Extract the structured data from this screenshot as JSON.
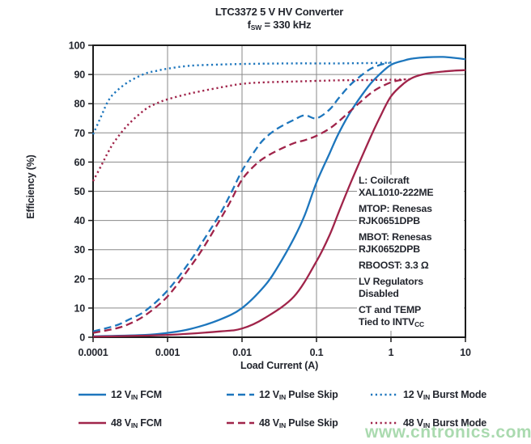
{
  "title": {
    "line1": "LTC3372 5 V HV Converter",
    "line2": {
      "pre": "f",
      "sub": "SW",
      "post": " = 330 kHz"
    }
  },
  "axes": {
    "x_label": "Load Current (A)",
    "y_label": "Efficiency (%)",
    "x_ticks": [
      "0.0001",
      "0.001",
      "0.01",
      "0.1",
      "1",
      "10"
    ],
    "y_ticks": [
      "0",
      "10",
      "20",
      "30",
      "40",
      "50",
      "60",
      "70",
      "80",
      "90",
      "100"
    ]
  },
  "annotation": {
    "groups": [
      {
        "lines": [
          {
            "pre": "L: Coilcraft",
            "sub": ""
          },
          {
            "pre": "XAL1010-222ME",
            "sub": ""
          }
        ]
      },
      {
        "lines": [
          {
            "pre": "MTOP: Renesas",
            "sub": ""
          },
          {
            "pre": "RJK0651DPB",
            "sub": ""
          }
        ]
      },
      {
        "lines": [
          {
            "pre": "MBOT: Renesas",
            "sub": ""
          },
          {
            "pre": "RJK0652DPB",
            "sub": ""
          }
        ]
      },
      {
        "lines": [
          {
            "pre": "RBOOST: 3.3 Ω",
            "sub": ""
          }
        ]
      },
      {
        "lines": [
          {
            "pre": "LV Regulators",
            "sub": ""
          },
          {
            "pre": "Disabled",
            "sub": ""
          }
        ]
      },
      {
        "lines": [
          {
            "pre": "CT and TEMP",
            "sub": ""
          },
          {
            "pre": "Tied to INTV",
            "sub": "CC"
          }
        ]
      }
    ]
  },
  "legend": {
    "rows": [
      {
        "entries": [
          {
            "style": "solid",
            "color": "blue",
            "pre": "12 V",
            "sub": "IN",
            "post": " FCM"
          },
          {
            "style": "dashed",
            "color": "blue",
            "pre": "12 V",
            "sub": "IN",
            "post": " Pulse Skip"
          },
          {
            "style": "dotted",
            "color": "blue",
            "pre": "12 V",
            "sub": "IN",
            "post": " Burst Mode"
          }
        ]
      },
      {
        "entries": [
          {
            "style": "solid",
            "color": "crimson",
            "pre": "48 V",
            "sub": "IN",
            "post": " FCM"
          },
          {
            "style": "dashed",
            "color": "crimson",
            "pre": "48 V",
            "sub": "IN",
            "post": " Pulse Skip"
          },
          {
            "style": "dotted",
            "color": "crimson",
            "pre": "48 V",
            "sub": "IN",
            "post": " Burst Mode"
          }
        ]
      }
    ]
  },
  "watermark": "www.cntronics.com",
  "colors": {
    "blue": "#1d76bd",
    "crimson": "#a0244a",
    "text": "#23262e",
    "grid": "#8a8a8a",
    "axis": "#1c1c1c",
    "watermark": "#9cd4a2"
  },
  "chart_data": {
    "type": "line",
    "title": "LTC3372 5 V HV Converter, fSW = 330 kHz",
    "xlabel": "Load Current (A)",
    "ylabel": "Efficiency (%)",
    "x_scale": "log",
    "xlim": [
      0.0001,
      10
    ],
    "ylim": [
      0,
      100
    ],
    "grid": true,
    "legend_position": "bottom",
    "series": [
      {
        "name": "12 VIN FCM",
        "color": "blue",
        "style": "solid",
        "x": [
          0.0001,
          0.0005,
          0.001,
          0.002,
          0.005,
          0.01,
          0.02,
          0.03,
          0.05,
          0.07,
          0.1,
          0.15,
          0.2,
          0.3,
          0.5,
          0.7,
          1,
          1.5,
          2,
          3,
          5,
          7,
          10
        ],
        "y": [
          0.3,
          0.8,
          1.5,
          2.8,
          6,
          10,
          17.5,
          24,
          34,
          42,
          53,
          63,
          70,
          78,
          86,
          90,
          93.3,
          94.8,
          95.5,
          95.9,
          96,
          95.7,
          95.2
        ]
      },
      {
        "name": "48 VIN FCM",
        "color": "crimson",
        "style": "solid",
        "x": [
          0.0001,
          0.001,
          0.005,
          0.01,
          0.02,
          0.05,
          0.1,
          0.15,
          0.2,
          0.3,
          0.5,
          0.7,
          1,
          1.5,
          2,
          3,
          5,
          7,
          10
        ],
        "y": [
          0.2,
          0.8,
          2,
          3,
          6.5,
          14,
          26,
          35,
          43,
          54,
          67,
          75,
          82.5,
          87,
          89,
          90.3,
          91,
          91.3,
          91.5
        ]
      },
      {
        "name": "12 VIN Pulse Skip",
        "color": "blue",
        "style": "dashed",
        "x": [
          0.0001,
          0.0002,
          0.0003,
          0.0005,
          0.001,
          0.002,
          0.003,
          0.005,
          0.007,
          0.01,
          0.015,
          0.02,
          0.03,
          0.05,
          0.07,
          0.1,
          0.15,
          0.2,
          0.3,
          0.5,
          0.7,
          0.95
        ],
        "y": [
          2,
          4,
          6,
          9,
          16,
          26,
          33,
          42,
          49,
          57,
          64,
          68,
          71.5,
          74.5,
          76,
          75,
          78,
          82,
          87,
          91.5,
          93.2,
          94
        ]
      },
      {
        "name": "48 VIN Pulse Skip",
        "color": "crimson",
        "style": "dashed",
        "x": [
          0.0001,
          0.0002,
          0.0003,
          0.0005,
          0.001,
          0.002,
          0.003,
          0.005,
          0.007,
          0.01,
          0.015,
          0.02,
          0.03,
          0.05,
          0.07,
          0.1,
          0.15,
          0.2,
          0.3,
          0.5,
          0.7,
          1,
          1.3,
          1.6
        ],
        "y": [
          1.5,
          3,
          4.5,
          7.5,
          14,
          24,
          30.5,
          40,
          46.5,
          54,
          59,
          61.5,
          64,
          66.5,
          67.5,
          69,
          71.5,
          74,
          78,
          83,
          85.5,
          87.3,
          88,
          88.3
        ]
      },
      {
        "name": "12 VIN Burst Mode",
        "color": "blue",
        "style": "dotted",
        "x": [
          0.0001,
          0.00013,
          0.00016,
          0.0002,
          0.0003,
          0.0005,
          0.0007,
          0.001,
          0.002,
          0.005,
          0.01,
          0.02,
          0.05,
          0.1,
          0.2,
          0.5,
          0.8,
          1.1
        ],
        "y": [
          69.5,
          76,
          81,
          84,
          87.5,
          90.3,
          91.2,
          92,
          93,
          93.4,
          93.6,
          93.7,
          93.8,
          93.8,
          93.8,
          93.9,
          94,
          94.2
        ]
      },
      {
        "name": "48 VIN Burst Mode",
        "color": "crimson",
        "style": "dotted",
        "x": [
          0.0001,
          0.00013,
          0.00016,
          0.0002,
          0.0003,
          0.0005,
          0.0007,
          0.001,
          0.002,
          0.005,
          0.01,
          0.02,
          0.05,
          0.1,
          0.2,
          0.5,
          1,
          1.5,
          1.9
        ],
        "y": [
          53.5,
          59,
          63.5,
          67.5,
          73,
          78,
          80,
          81.5,
          83.5,
          85.5,
          86.8,
          87.3,
          87.6,
          87.8,
          88,
          88.1,
          88.2,
          88.3,
          88.4
        ]
      }
    ]
  }
}
